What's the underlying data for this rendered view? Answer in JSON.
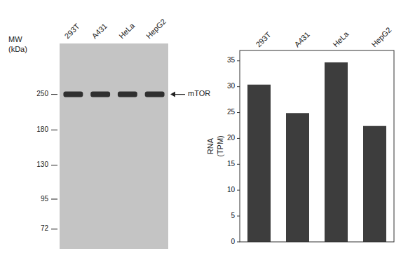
{
  "chart_data": [
    {
      "type": "blot",
      "categories": [
        "293T",
        "A431",
        "HeLa",
        "HepG2"
      ],
      "values": [
        250,
        250,
        250,
        250
      ],
      "color": "#303030",
      "ylabel": "MW\n(kDa)",
      "log": "y",
      "ylim": [
        60,
        400
      ],
      "yticks": [
        250,
        180,
        130,
        95,
        72
      ],
      "annotations": [
        {
          "text": "mTOR",
          "value": 250
        }
      ]
    },
    {
      "type": "bar",
      "categories": [
        "293T",
        "A431",
        "HeLa",
        "HepG2"
      ],
      "values": [
        30.4,
        24.9,
        34.7,
        22.4
      ],
      "color": "#3d3d3d",
      "ylabel": "RNA\n(TPM)",
      "ylim": [
        0,
        37
      ],
      "yticks": [
        0,
        5,
        10,
        15,
        20,
        25,
        30,
        35
      ]
    }
  ]
}
